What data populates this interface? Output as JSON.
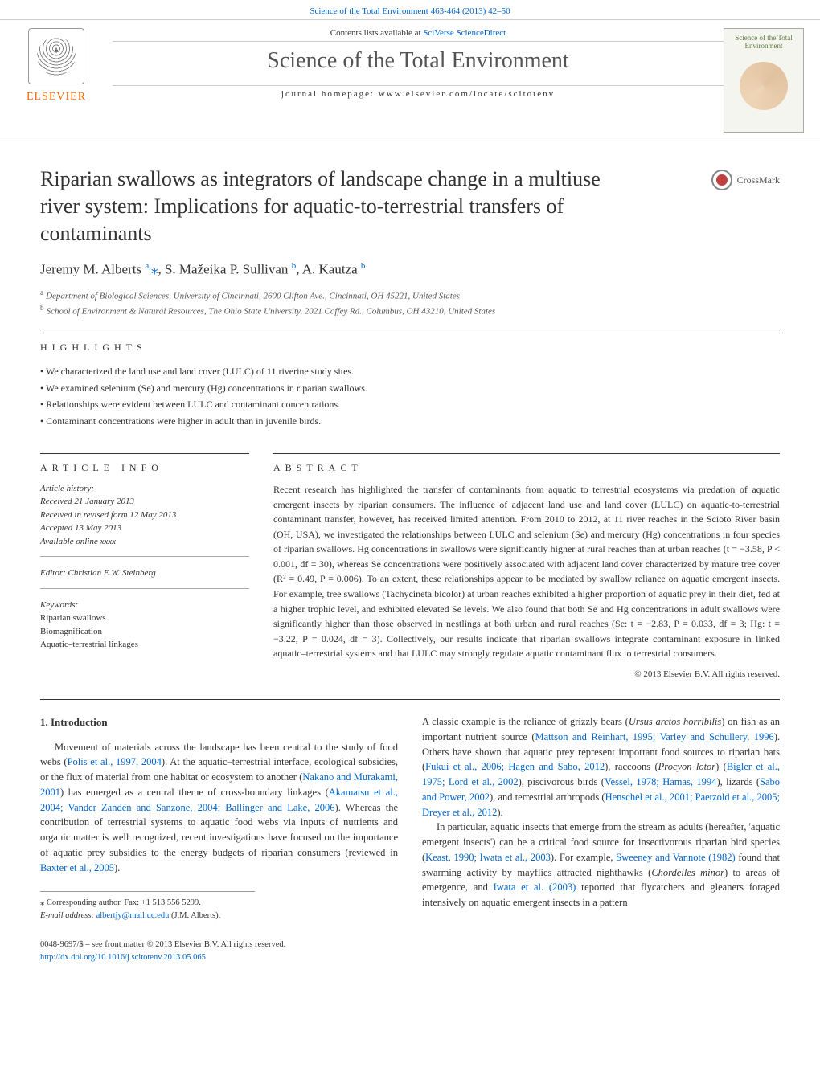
{
  "top_citation": "Science of the Total Environment 463-464 (2013) 42–50",
  "header": {
    "contents_prefix": "Contents lists available at ",
    "contents_link": "SciVerse ScienceDirect",
    "journal_title": "Science of the Total Environment",
    "homepage_line": "journal homepage: www.elsevier.com/locate/scitotenv",
    "publisher": "ELSEVIER",
    "cover_title": "Science of the Total Environment"
  },
  "crossmark_label": "CrossMark",
  "article": {
    "title": "Riparian swallows as integrators of landscape change in a multiuse river system: Implications for aquatic-to-terrestrial transfers of contaminants",
    "authors_html": "Jeremy M. Alberts <sup>a,</sup><span class='star'>⁎</span>, S. Mažeika P. Sullivan <sup>b</sup>, A. Kautza <sup>b</sup>",
    "affiliations": [
      {
        "sup": "a",
        "text": "Department of Biological Sciences, University of Cincinnati, 2600 Clifton Ave., Cincinnati, OH 45221, United States"
      },
      {
        "sup": "b",
        "text": "School of Environment & Natural Resources, The Ohio State University, 2021 Coffey Rd., Columbus, OH 43210, United States"
      }
    ]
  },
  "highlights_label": "HIGHLIGHTS",
  "highlights": [
    "We characterized the land use and land cover (LULC) of 11 riverine study sites.",
    "We examined selenium (Se) and mercury (Hg) concentrations in riparian swallows.",
    "Relationships were evident between LULC and contaminant concentrations.",
    "Contaminant concentrations were higher in adult than in juvenile birds."
  ],
  "article_info": {
    "label": "ARTICLE INFO",
    "history_hdr": "Article history:",
    "history": [
      "Received 21 January 2013",
      "Received in revised form 12 May 2013",
      "Accepted 13 May 2013",
      "Available online xxxx"
    ],
    "editor": "Editor: Christian E.W. Steinberg",
    "keywords_hdr": "Keywords:",
    "keywords": [
      "Riparian swallows",
      "Biomagnification",
      "Aquatic–terrestrial linkages"
    ]
  },
  "abstract": {
    "label": "ABSTRACT",
    "text": "Recent research has highlighted the transfer of contaminants from aquatic to terrestrial ecosystems via predation of aquatic emergent insects by riparian consumers. The influence of adjacent land use and land cover (LULC) on aquatic-to-terrestrial contaminant transfer, however, has received limited attention. From 2010 to 2012, at 11 river reaches in the Scioto River basin (OH, USA), we investigated the relationships between LULC and selenium (Se) and mercury (Hg) concentrations in four species of riparian swallows. Hg concentrations in swallows were significantly higher at rural reaches than at urban reaches (t = −3.58, P < 0.001, df = 30), whereas Se concentrations were positively associated with adjacent land cover characterized by mature tree cover (R² = 0.49, P = 0.006). To an extent, these relationships appear to be mediated by swallow reliance on aquatic emergent insects. For example, tree swallows (Tachycineta bicolor) at urban reaches exhibited a higher proportion of aquatic prey in their diet, fed at a higher trophic level, and exhibited elevated Se levels. We also found that both Se and Hg concentrations in adult swallows were significantly higher than those observed in nestlings at both urban and rural reaches (Se: t = −2.83, P = 0.033, df = 3; Hg: t = −3.22, P = 0.024, df = 3). Collectively, our results indicate that riparian swallows integrate contaminant exposure in linked aquatic–terrestrial systems and that LULC may strongly regulate aquatic contaminant flux to terrestrial consumers.",
    "copyright": "© 2013 Elsevier B.V. All rights reserved."
  },
  "intro": {
    "heading": "1. Introduction",
    "col1_p1": "Movement of materials across the landscape has been central to the study of food webs (",
    "col1_c1": "Polis et al., 1997, 2004",
    "col1_p2": "). At the aquatic–terrestrial interface, ecological subsidies, or the flux of material from one habitat or ecosystem to another (",
    "col1_c2": "Nakano and Murakami, 2001",
    "col1_p3": ") has emerged as a central theme of cross-boundary linkages (",
    "col1_c3": "Akamatsu et al., 2004; Vander Zanden and Sanzone, 2004; Ballinger and Lake, 2006",
    "col1_p4": "). Whereas the contribution of terrestrial systems to aquatic food webs via inputs of nutrients and organic matter is well recognized, recent investigations have focused on the importance of aquatic prey subsidies to the energy budgets of riparian consumers (reviewed in ",
    "col1_c4": "Baxter et al., 2005",
    "col1_p5": ").",
    "col2_p1a": "A classic example is the reliance of grizzly bears (",
    "col2_it1": "Ursus arctos horribilis",
    "col2_p1b": ") on fish as an important nutrient source (",
    "col2_c1": "Mattson and Reinhart, 1995; Varley and Schullery, 1996",
    "col2_p1c": "). Others have shown that aquatic prey represent important food sources to riparian bats (",
    "col2_c2": "Fukui et al., 2006; Hagen and Sabo, 2012",
    "col2_p1d": "), raccoons (",
    "col2_it2": "Procyon lotor",
    "col2_p1e": ") (",
    "col2_c3": "Bigler et al., 1975; Lord et al., 2002",
    "col2_p1f": "), piscivorous birds (",
    "col2_c4": "Vessel, 1978; Hamas, 1994",
    "col2_p1g": "), lizards (",
    "col2_c5": "Sabo and Power, 2002",
    "col2_p1h": "), and terrestrial arthropods (",
    "col2_c6": "Henschel et al., 2001; Paetzold et al., 2005; Dreyer et al., 2012",
    "col2_p1i": ").",
    "col2_p2a": "In particular, aquatic insects that emerge from the stream as adults (hereafter, 'aquatic emergent insects') can be a critical food source for insectivorous riparian bird species (",
    "col2_c7": "Keast, 1990; Iwata et al., 2003",
    "col2_p2b": "). For example, ",
    "col2_c8": "Sweeney and Vannote (1982)",
    "col2_p2c": " found that swarming activity by mayflies attracted nighthawks (",
    "col2_it3": "Chordeiles minor",
    "col2_p2d": ") to areas of emergence, and ",
    "col2_c9": "Iwata et al. (2003)",
    "col2_p2e": " reported that flycatchers and gleaners foraged intensively on aquatic emergent insects in a pattern"
  },
  "footnotes": {
    "corr": "⁎ Corresponding author. Fax: +1 513 556 5299.",
    "email_label": "E-mail address: ",
    "email": "albertjy@mail.uc.edu",
    "email_who": " (J.M. Alberts)."
  },
  "footer": {
    "line1": "0048-9697/$ – see front matter © 2013 Elsevier B.V. All rights reserved.",
    "doi": "http://dx.doi.org/10.1016/j.scitotenv.2013.05.065"
  },
  "colors": {
    "link": "#0066cc",
    "text": "#333333",
    "publisher": "#ff6600",
    "rule": "#333333"
  }
}
